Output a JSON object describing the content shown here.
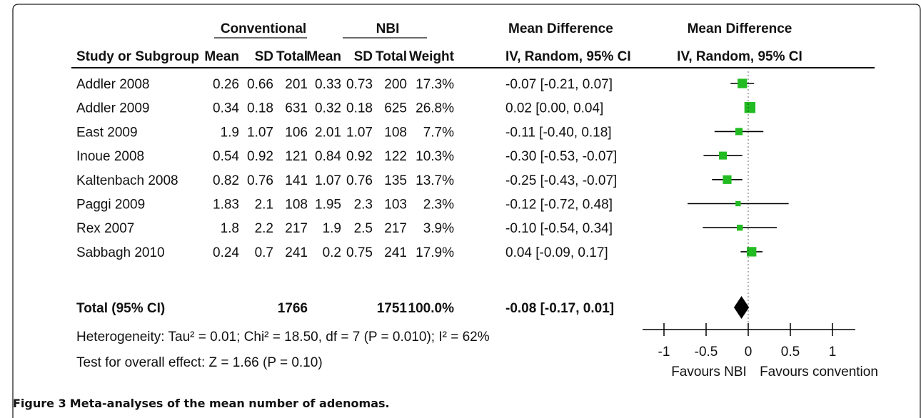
{
  "figure": {
    "caption_label": "Figure 3",
    "caption_text": "Meta-analyses of the mean number of adenomas."
  },
  "colors": {
    "point": "#22bb22",
    "diamond": "#000000",
    "line": "#000000"
  },
  "chart_data": {
    "type": "forest",
    "group_headers": {
      "conventional": "Conventional",
      "nbi": "NBI",
      "md_left": "Mean Difference",
      "md_right": "Mean Difference"
    },
    "column_headers": [
      "Study or Subgroup",
      "Mean",
      "SD",
      "Total",
      "Mean",
      "SD",
      "Total",
      "Weight",
      "IV, Random, 95% CI",
      "IV, Random, 95% CI"
    ],
    "studies": [
      {
        "name": "Addler 2008",
        "c_mean": "0.26",
        "c_sd": "0.66",
        "c_total": "201",
        "n_mean": "0.33",
        "n_sd": "0.73",
        "n_total": "200",
        "weight": "17.3%",
        "ci_text": "-0.07 [-0.21, 0.07]",
        "md": -0.07,
        "lo": -0.21,
        "hi": 0.07,
        "w": 17.3
      },
      {
        "name": "Addler 2009",
        "c_mean": "0.34",
        "c_sd": "0.18",
        "c_total": "631",
        "n_mean": "0.32",
        "n_sd": "0.18",
        "n_total": "625",
        "weight": "26.8%",
        "ci_text": "0.02 [0.00, 0.04]",
        "md": 0.02,
        "lo": 0.0,
        "hi": 0.04,
        "w": 26.8
      },
      {
        "name": "East 2009",
        "c_mean": "1.9",
        "c_sd": "1.07",
        "c_total": "106",
        "n_mean": "2.01",
        "n_sd": "1.07",
        "n_total": "108",
        "weight": "7.7%",
        "ci_text": "-0.11 [-0.40, 0.18]",
        "md": -0.11,
        "lo": -0.4,
        "hi": 0.18,
        "w": 7.7
      },
      {
        "name": "Inoue 2008",
        "c_mean": "0.54",
        "c_sd": "0.92",
        "c_total": "121",
        "n_mean": "0.84",
        "n_sd": "0.92",
        "n_total": "122",
        "weight": "10.3%",
        "ci_text": "-0.30 [-0.53, -0.07]",
        "md": -0.3,
        "lo": -0.53,
        "hi": -0.07,
        "w": 10.3
      },
      {
        "name": "Kaltenbach 2008",
        "c_mean": "0.82",
        "c_sd": "0.76",
        "c_total": "141",
        "n_mean": "1.07",
        "n_sd": "0.76",
        "n_total": "135",
        "weight": "13.7%",
        "ci_text": "-0.25 [-0.43, -0.07]",
        "md": -0.25,
        "lo": -0.43,
        "hi": -0.07,
        "w": 13.7
      },
      {
        "name": "Paggi 2009",
        "c_mean": "1.83",
        "c_sd": "2.1",
        "c_total": "108",
        "n_mean": "1.95",
        "n_sd": "2.3",
        "n_total": "103",
        "weight": "2.3%",
        "ci_text": "-0.12 [-0.72, 0.48]",
        "md": -0.12,
        "lo": -0.72,
        "hi": 0.48,
        "w": 2.3
      },
      {
        "name": "Rex 2007",
        "c_mean": "1.8",
        "c_sd": "2.2",
        "c_total": "217",
        "n_mean": "1.9",
        "n_sd": "2.5",
        "n_total": "217",
        "weight": "3.9%",
        "ci_text": "-0.10 [-0.54, 0.34]",
        "md": -0.1,
        "lo": -0.54,
        "hi": 0.34,
        "w": 3.9
      },
      {
        "name": "Sabbagh 2010",
        "c_mean": "0.24",
        "c_sd": "0.7",
        "c_total": "241",
        "n_mean": "0.2",
        "n_sd": "0.75",
        "n_total": "241",
        "weight": "17.9%",
        "ci_text": "0.04 [-0.09, 0.17]",
        "md": 0.04,
        "lo": -0.09,
        "hi": 0.17,
        "w": 17.9
      }
    ],
    "total": {
      "name": "Total (95% CI)",
      "c_total": "1766",
      "n_total": "1751",
      "weight": "100.0%",
      "ci_text": "-0.08 [-0.17, 0.01]",
      "md": -0.08,
      "lo": -0.17,
      "hi": 0.01
    },
    "heterogeneity": "Heterogeneity: Tau² = 0.01; Chi² = 18.50, df = 7 (P = 0.010); I² = 62%",
    "overall_effect": "Test for overall effect: Z = 1.66 (P = 0.10)",
    "x_ticks": [
      "-1",
      "-0.5",
      "0",
      "0.5",
      "1"
    ],
    "tick_values": [
      -1,
      -0.5,
      0,
      0.5,
      1
    ],
    "xlim": [
      -1.3,
      1.7
    ],
    "favours_left": "Favours NBI",
    "favours_right": "Favours convention"
  }
}
